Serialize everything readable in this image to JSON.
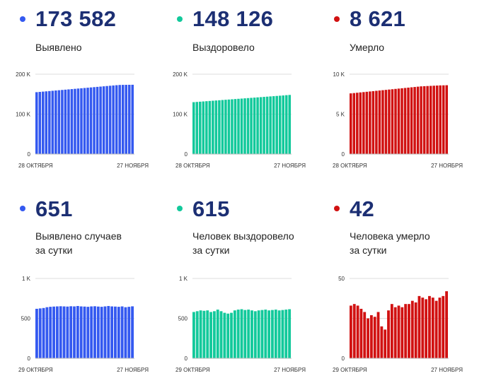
{
  "colors": {
    "blue": "#3459f0",
    "green": "#12c99b",
    "red": "#d11111",
    "number": "#1c2f73",
    "grid": "#dddddd"
  },
  "panels": [
    {
      "big_number": "173 582",
      "label_lines": [
        "Выявлено"
      ]
    },
    {
      "big_number": "148 126",
      "label_lines": [
        "Выздоровело"
      ]
    },
    {
      "big_number": "8 621",
      "label_lines": [
        "Умерло"
      ]
    },
    {
      "big_number": "651",
      "label_lines": [
        "Выявлено случаев",
        "за сутки"
      ]
    },
    {
      "big_number": "615",
      "label_lines": [
        "Человек выздоровело",
        "за сутки"
      ]
    },
    {
      "big_number": "42",
      "label_lines": [
        "Человека умерло",
        "за сутки"
      ]
    }
  ],
  "chart_data": [
    {
      "type": "bar",
      "series_color": "#3459f0",
      "y_ticks": [
        "200 K",
        "100 K",
        "0"
      ],
      "ylim": [
        0,
        200000
      ],
      "x_start_label": "28 ОКТЯБРЯ",
      "x_end_label": "27 НОЯБРЯ",
      "values": [
        155000,
        155700,
        156400,
        157100,
        157800,
        158500,
        159200,
        159900,
        160600,
        161300,
        162000,
        162700,
        163400,
        164100,
        164800,
        165500,
        166200,
        166900,
        167600,
        168300,
        169000,
        169700,
        170400,
        171100,
        171800,
        172500,
        173100,
        173300,
        173400,
        173500,
        173582
      ]
    },
    {
      "type": "bar",
      "series_color": "#12c99b",
      "y_ticks": [
        "200 K",
        "100 K",
        "0"
      ],
      "ylim": [
        0,
        200000
      ],
      "x_start_label": "28 ОКТЯБРЯ",
      "x_end_label": "27 НОЯБРЯ",
      "values": [
        130000,
        130600,
        131200,
        131800,
        132400,
        133000,
        133600,
        134200,
        134800,
        135400,
        136000,
        136600,
        137200,
        137800,
        138400,
        139000,
        139600,
        140200,
        140800,
        141400,
        142000,
        142600,
        143200,
        143800,
        144400,
        145000,
        145600,
        146200,
        146800,
        147500,
        148126
      ]
    },
    {
      "type": "bar",
      "series_color": "#d11111",
      "y_ticks": [
        "10 K",
        "5 K",
        "0"
      ],
      "ylim": [
        0,
        10000
      ],
      "x_start_label": "28 ОКТЯБРЯ",
      "x_end_label": "27 НОЯБРЯ",
      "values": [
        7600,
        7640,
        7680,
        7720,
        7760,
        7800,
        7840,
        7880,
        7920,
        7960,
        8000,
        8040,
        8080,
        8120,
        8160,
        8200,
        8240,
        8280,
        8320,
        8360,
        8400,
        8440,
        8480,
        8500,
        8520,
        8540,
        8560,
        8580,
        8600,
        8610,
        8621
      ]
    },
    {
      "type": "bar",
      "series_color": "#3459f0",
      "y_ticks": [
        "1 K",
        "500",
        "0"
      ],
      "ylim": [
        0,
        1000
      ],
      "x_start_label": "29 ОКТЯБРЯ",
      "x_end_label": "27 НОЯБРЯ",
      "values": [
        620,
        625,
        630,
        640,
        645,
        648,
        650,
        652,
        650,
        648,
        652,
        650,
        655,
        650,
        648,
        645,
        650,
        652,
        648,
        645,
        650,
        655,
        650,
        648,
        645,
        650,
        640,
        645,
        651
      ]
    },
    {
      "type": "bar",
      "series_color": "#12c99b",
      "y_ticks": [
        "1 K",
        "500",
        "0"
      ],
      "ylim": [
        0,
        1000
      ],
      "x_start_label": "29 ОКТЯБРЯ",
      "x_end_label": "27 НОЯБРЯ",
      "values": [
        580,
        590,
        600,
        595,
        600,
        580,
        590,
        610,
        590,
        570,
        560,
        570,
        600,
        610,
        615,
        605,
        610,
        600,
        590,
        600,
        605,
        610,
        600,
        605,
        610,
        600,
        605,
        610,
        615
      ]
    },
    {
      "type": "bar",
      "series_color": "#d11111",
      "y_ticks": [
        "50",
        "",
        "0"
      ],
      "ylim": [
        0,
        50
      ],
      "x_start_label": "29 ОКТЯБРЯ",
      "x_end_label": "27 НОЯБРЯ",
      "values": [
        33,
        34,
        33,
        31,
        29,
        25,
        27,
        26,
        29,
        20,
        18,
        30,
        34,
        32,
        33,
        32,
        34,
        34,
        36,
        35,
        39,
        38,
        37,
        39,
        38,
        36,
        38,
        39,
        42
      ]
    }
  ]
}
